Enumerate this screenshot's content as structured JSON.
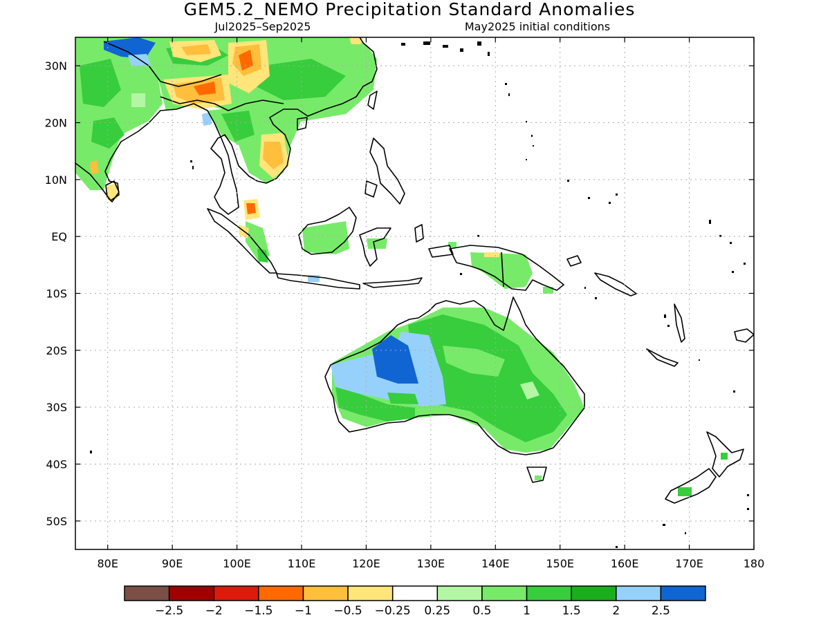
{
  "title": "GEM5.2_NEMO Precipitation Standard Anomalies",
  "period": "Jul2025–Sep2025",
  "init": "May2025 initial conditions",
  "map": {
    "lon_range": [
      75,
      180
    ],
    "lat_range": [
      -55,
      35
    ],
    "lat_ticks": [
      {
        "value": 30,
        "label": "30N"
      },
      {
        "value": 20,
        "label": "20N"
      },
      {
        "value": 10,
        "label": "10N"
      },
      {
        "value": 0,
        "label": "EQ"
      },
      {
        "value": -10,
        "label": "10S"
      },
      {
        "value": -20,
        "label": "20S"
      },
      {
        "value": -30,
        "label": "30S"
      },
      {
        "value": -40,
        "label": "40S"
      },
      {
        "value": -50,
        "label": "50S"
      }
    ],
    "lon_ticks": [
      {
        "value": 80,
        "label": "80E"
      },
      {
        "value": 90,
        "label": "90E"
      },
      {
        "value": 100,
        "label": "100E"
      },
      {
        "value": 110,
        "label": "110E"
      },
      {
        "value": 120,
        "label": "120E"
      },
      {
        "value": 130,
        "label": "130E"
      },
      {
        "value": 140,
        "label": "140E"
      },
      {
        "value": 150,
        "label": "150E"
      },
      {
        "value": 160,
        "label": "160E"
      },
      {
        "value": 170,
        "label": "170E"
      },
      {
        "value": 180,
        "label": "180"
      }
    ]
  },
  "colorbar": {
    "colors": [
      "#7b4f45",
      "#a10000",
      "#dd1a0c",
      "#ff6a00",
      "#ffbe3c",
      "#ffe57a",
      "#ffffff",
      "#b3f7a5",
      "#78ea6a",
      "#37cd3c",
      "#1aae1c",
      "#96d1fb",
      "#1165d2"
    ],
    "labels": [
      "−2.5",
      "−2",
      "−1.5",
      "−1",
      "−0.5",
      "−0.25",
      "0.25",
      "0.5",
      "1",
      "1.5",
      "2",
      "2.5"
    ]
  }
}
